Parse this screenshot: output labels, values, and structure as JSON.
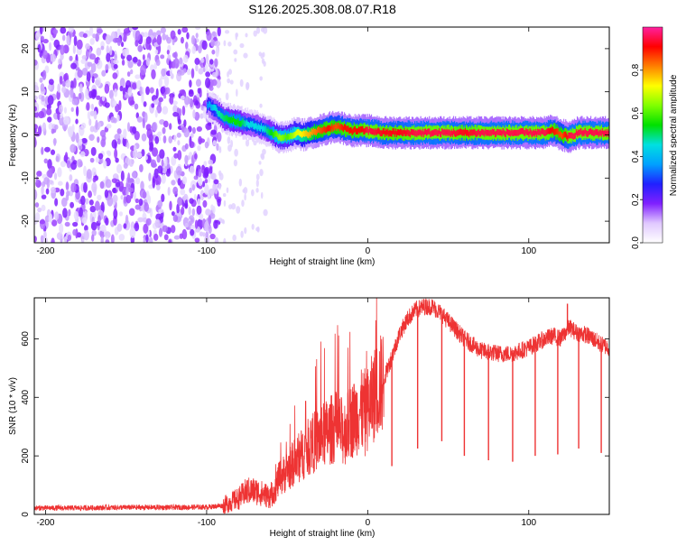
{
  "figure_title": "S126.2025.308.08.07.R18",
  "colors": {
    "snr_line": "#ee3333",
    "scatter_purple": "#8020ff",
    "axis": "#000000"
  },
  "chart_data": [
    {
      "type": "heatmap",
      "name": "spectrogram",
      "xlabel": "Height of straight line (km)",
      "ylabel": "Frequency (Hz)",
      "xlim": [
        -207,
        150
      ],
      "ylim": [
        -25,
        25
      ],
      "xticks": [
        -200,
        -100,
        0,
        100
      ],
      "xtick_labels": [
        "-200",
        "-100",
        "0",
        "100"
      ],
      "yticks": [
        -20,
        -10,
        0,
        10,
        20
      ],
      "ytick_labels": [
        "-20",
        "-10",
        "0",
        "10",
        "20"
      ],
      "colorbar": {
        "label": "Normalized spectral amplitude",
        "range": [
          0,
          1
        ],
        "ticks": [
          0,
          0.2,
          0.4,
          0.6,
          0.8
        ],
        "tick_labels": [
          "0.0",
          "0.2",
          "0.4",
          "0.6",
          "0.8"
        ],
        "colormap": [
          "#ffffff",
          "#e0c8ff",
          "#8020ff",
          "#2020ff",
          "#00a0ff",
          "#00e0e0",
          "#00e000",
          "#80ff00",
          "#ffff00",
          "#ff8000",
          "#ff0000",
          "#ff20a0"
        ]
      },
      "signal_track": {
        "x": [
          -100,
          -95,
          -90,
          -85,
          -80,
          -75,
          -70,
          -65,
          -60,
          -55,
          -50,
          -45,
          -40,
          -35,
          -30,
          -25,
          -20,
          -15,
          -10,
          -5,
          0,
          10,
          20,
          30,
          40,
          50,
          60,
          70,
          80,
          90,
          100,
          110,
          115,
          120,
          125,
          130,
          140,
          150
        ],
        "freq": [
          7,
          6,
          4,
          3.5,
          3,
          2.5,
          2,
          1.5,
          0.5,
          -0.5,
          -0.5,
          0.5,
          0,
          0.5,
          1,
          1.5,
          2,
          1.5,
          1,
          1,
          1,
          0.5,
          0.5,
          0.5,
          0.5,
          0.5,
          0.5,
          0.5,
          0.5,
          0.5,
          0.5,
          0.5,
          1,
          0,
          -0.5,
          0.5,
          0.5,
          0.5
        ],
        "amplitude": [
          0.35,
          0.45,
          0.5,
          0.55,
          0.55,
          0.45,
          0.45,
          0.45,
          0.55,
          0.65,
          0.6,
          0.7,
          0.75,
          0.8,
          0.85,
          0.9,
          0.85,
          0.9,
          0.9,
          0.9,
          0.95,
          0.92,
          0.92,
          0.95,
          0.95,
          0.95,
          0.92,
          0.95,
          0.95,
          0.95,
          0.95,
          0.95,
          0.9,
          0.85,
          0.95,
          0.95,
          0.95,
          0.95
        ]
      },
      "noise_region_x": [
        -207,
        -92
      ],
      "noise_region_faint_x": [
        -92,
        -63
      ]
    },
    {
      "type": "line",
      "name": "snr",
      "xlabel": "Height of straight line (km)",
      "ylabel": "SNR (10 * v/v)",
      "xlim": [
        -207,
        150
      ],
      "ylim": [
        0,
        740
      ],
      "xticks": [
        -200,
        -100,
        0,
        100
      ],
      "xtick_labels": [
        "-200",
        "-100",
        "0",
        "100"
      ],
      "yticks": [
        0,
        200,
        400,
        600
      ],
      "ytick_labels": [
        "0",
        "200",
        "400",
        "600"
      ],
      "series": [
        {
          "name": "SNR",
          "x": [
            -207,
            -180,
            -150,
            -120,
            -100,
            -90,
            -80,
            -75,
            -70,
            -65,
            -60,
            -55,
            -50,
            -45,
            -40,
            -35,
            -30,
            -25,
            -20,
            -15,
            -10,
            -5,
            0,
            5,
            10,
            15,
            20,
            25,
            30,
            35,
            40,
            45,
            50,
            55,
            60,
            65,
            70,
            75,
            80,
            85,
            90,
            95,
            100,
            105,
            110,
            115,
            120,
            125,
            130,
            135,
            140,
            145,
            150
          ],
          "y": [
            22,
            22,
            24,
            24,
            25,
            30,
            55,
            80,
            80,
            70,
            60,
            120,
            150,
            180,
            210,
            240,
            260,
            280,
            300,
            280,
            320,
            350,
            360,
            420,
            460,
            540,
            620,
            670,
            700,
            710,
            710,
            690,
            660,
            630,
            600,
            580,
            560,
            555,
            550,
            548,
            550,
            560,
            570,
            585,
            600,
            610,
            600,
            640,
            620,
            615,
            600,
            580,
            570
          ]
        }
      ],
      "spikes_down": [
        {
          "x": 15,
          "y": 165
        },
        {
          "x": 31,
          "y": 225
        },
        {
          "x": 46,
          "y": 250
        },
        {
          "x": 60,
          "y": 200
        },
        {
          "x": 75,
          "y": 185
        },
        {
          "x": 90,
          "y": 180
        },
        {
          "x": 104,
          "y": 200
        },
        {
          "x": 118,
          "y": 205
        },
        {
          "x": 131,
          "y": 225
        },
        {
          "x": 145,
          "y": 210
        }
      ],
      "spikes_up": [
        {
          "x": 124,
          "y": 720
        }
      ]
    }
  ]
}
